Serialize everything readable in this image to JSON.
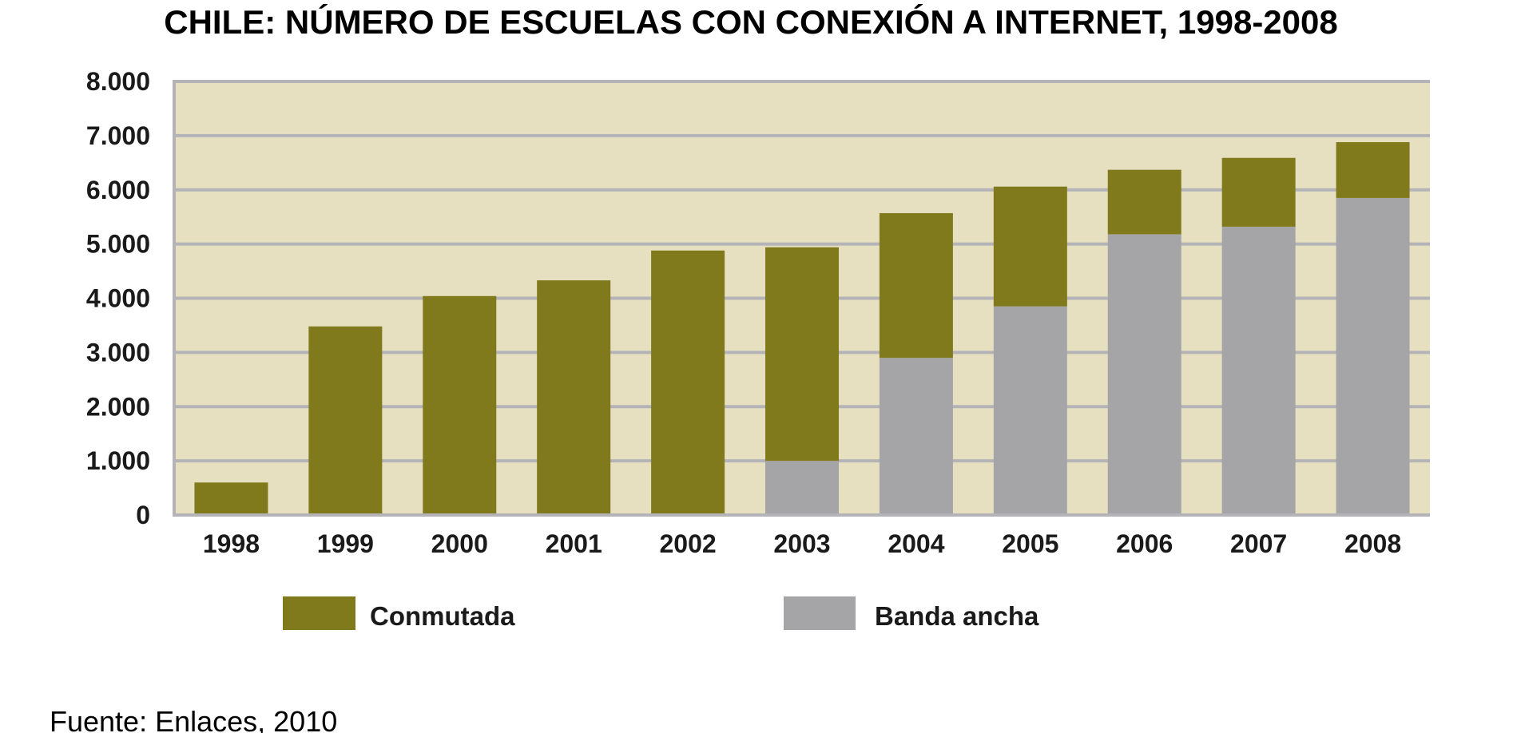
{
  "chart_data": {
    "type": "bar",
    "stacked": true,
    "title": "CHILE: NÚMERO DE ESCUELAS CON CONEXIÓN A INTERNET, 1998-2008",
    "xlabel": "",
    "ylabel": "",
    "categories": [
      "1998",
      "1999",
      "2000",
      "2001",
      "2002",
      "2003",
      "2004",
      "2005",
      "2006",
      "2007",
      "2008"
    ],
    "series": [
      {
        "name": "Banda ancha",
        "color": "#a5a5a8",
        "values": [
          0,
          0,
          0,
          0,
          0,
          1000,
          2900,
          3850,
          5180,
          5320,
          5850
        ]
      },
      {
        "name": "Conmutada",
        "color": "#807a1c",
        "values": [
          600,
          3480,
          4040,
          4330,
          4880,
          3940,
          2670,
          2210,
          1190,
          1270,
          1030
        ]
      }
    ],
    "ylim": [
      0,
      8000
    ],
    "yticks": [
      0,
      1000,
      2000,
      3000,
      4000,
      5000,
      6000,
      7000,
      8000
    ],
    "ytick_labels": [
      "0",
      "1.000",
      "2.000",
      "3.000",
      "4.000",
      "5.000",
      "6.000",
      "7.000",
      "8.000"
    ],
    "grid": true,
    "legend": {
      "placement": "bottom",
      "entries": [
        {
          "label": "Conmutada",
          "color": "#807a1c"
        },
        {
          "label": "Banda ancha",
          "color": "#a5a5a8"
        }
      ]
    },
    "plot_background": "#e6e0c1",
    "grid_color": "#b4b4b8"
  },
  "source": "Fuente: Enlaces, 2010"
}
